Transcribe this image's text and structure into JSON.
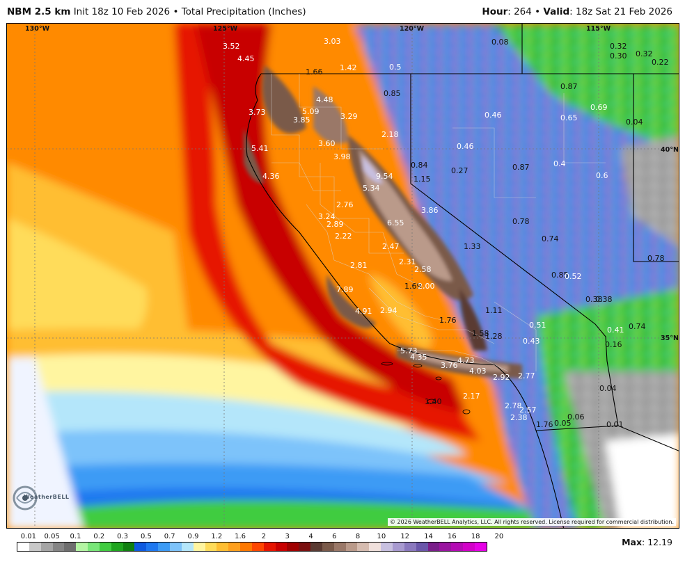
{
  "header": {
    "model": "NBM 2.5 km",
    "init": "Init 18z 10 Feb 2026",
    "bullet": "•",
    "product": "Total Precipitation (Inches)",
    "hour_label": "Hour",
    "hour_value": ": 264",
    "valid_label": "Valid",
    "valid_value": ": 18z Sat 21 Feb 2026"
  },
  "map": {
    "coordinates": [
      {
        "id": "lon130",
        "text": "130°W"
      },
      {
        "id": "lon125",
        "text": "125°W"
      },
      {
        "id": "lon120",
        "text": "120°W"
      },
      {
        "id": "lon115",
        "text": "115°W"
      },
      {
        "id": "lat40",
        "text": "40°N"
      },
      {
        "id": "lat35",
        "text": "35°N"
      }
    ],
    "precip_labels": [
      {
        "text": "3.52",
        "tone": "white"
      },
      {
        "text": "4.45",
        "tone": "white"
      },
      {
        "text": "3.03",
        "tone": "white"
      },
      {
        "text": "1.66",
        "tone": "black"
      },
      {
        "text": "1.42",
        "tone": "white"
      },
      {
        "text": "0.5",
        "tone": "white"
      },
      {
        "text": "0.85",
        "tone": "black"
      },
      {
        "text": "4.48",
        "tone": "white"
      },
      {
        "text": "5.09",
        "tone": "white"
      },
      {
        "text": "3.73",
        "tone": "white"
      },
      {
        "text": "3.85",
        "tone": "white"
      },
      {
        "text": "3.29",
        "tone": "white"
      },
      {
        "text": "2.18",
        "tone": "white"
      },
      {
        "text": "3.60",
        "tone": "white"
      },
      {
        "text": "5.41",
        "tone": "white"
      },
      {
        "text": "3.98",
        "tone": "white"
      },
      {
        "text": "9.54",
        "tone": "white"
      },
      {
        "text": "0.84",
        "tone": "black"
      },
      {
        "text": "1.15",
        "tone": "black"
      },
      {
        "text": "4.36",
        "tone": "white"
      },
      {
        "text": "5.34",
        "tone": "white"
      },
      {
        "text": "2.76",
        "tone": "white"
      },
      {
        "text": "3.86",
        "tone": "white"
      },
      {
        "text": "3.24",
        "tone": "white"
      },
      {
        "text": "2.89",
        "tone": "white"
      },
      {
        "text": "6.55",
        "tone": "white"
      },
      {
        "text": "2.22",
        "tone": "white"
      },
      {
        "text": "1.33",
        "tone": "black"
      },
      {
        "text": "2.47",
        "tone": "white"
      },
      {
        "text": "2.31",
        "tone": "white"
      },
      {
        "text": "2.81",
        "tone": "white"
      },
      {
        "text": "2.58",
        "tone": "white"
      },
      {
        "text": "1.69",
        "tone": "black"
      },
      {
        "text": "2.00",
        "tone": "white"
      },
      {
        "text": "7.89",
        "tone": "white"
      },
      {
        "text": "4.91",
        "tone": "white"
      },
      {
        "text": "2.94",
        "tone": "white"
      },
      {
        "text": "1.11",
        "tone": "black"
      },
      {
        "text": "1.76",
        "tone": "black"
      },
      {
        "text": "1.58",
        "tone": "black"
      },
      {
        "text": "1.28",
        "tone": "black"
      },
      {
        "text": "5.73",
        "tone": "white"
      },
      {
        "text": "4.35",
        "tone": "white"
      },
      {
        "text": "3.76",
        "tone": "white"
      },
      {
        "text": "4.73",
        "tone": "white"
      },
      {
        "text": "4.03",
        "tone": "white"
      },
      {
        "text": "2.92",
        "tone": "white"
      },
      {
        "text": "2.77",
        "tone": "white"
      },
      {
        "text": "2.17",
        "tone": "white"
      },
      {
        "text": "1.40",
        "tone": "black"
      },
      {
        "text": "2.78",
        "tone": "white"
      },
      {
        "text": "2.57",
        "tone": "white"
      },
      {
        "text": "2.38",
        "tone": "white"
      },
      {
        "text": "1.76",
        "tone": "black"
      },
      {
        "text": "0.08",
        "tone": "black"
      },
      {
        "text": "0.32",
        "tone": "black"
      },
      {
        "text": "0.30",
        "tone": "black"
      },
      {
        "text": "0.32",
        "tone": "black"
      },
      {
        "text": "0.22",
        "tone": "black"
      },
      {
        "text": "0.87",
        "tone": "black"
      },
      {
        "text": "0.46",
        "tone": "white"
      },
      {
        "text": "0.65",
        "tone": "white"
      },
      {
        "text": "0.69",
        "tone": "white"
      },
      {
        "text": "0.04",
        "tone": "black"
      },
      {
        "text": "0.46",
        "tone": "white"
      },
      {
        "text": "0.27",
        "tone": "black"
      },
      {
        "text": "0.87",
        "tone": "black"
      },
      {
        "text": "0.4",
        "tone": "white"
      },
      {
        "text": "0.6",
        "tone": "white"
      },
      {
        "text": "0.78",
        "tone": "black"
      },
      {
        "text": "0.74",
        "tone": "black"
      },
      {
        "text": "0.78",
        "tone": "black"
      },
      {
        "text": "0.85",
        "tone": "black"
      },
      {
        "text": "0.52",
        "tone": "white"
      },
      {
        "text": "0.38",
        "tone": "black"
      },
      {
        "text": "0.38",
        "tone": "black"
      },
      {
        "text": "0.51",
        "tone": "white"
      },
      {
        "text": "0.41",
        "tone": "white"
      },
      {
        "text": "0.74",
        "tone": "black"
      },
      {
        "text": "0.43",
        "tone": "white"
      },
      {
        "text": "0.16",
        "tone": "black"
      },
      {
        "text": "0.04",
        "tone": "black"
      },
      {
        "text": "0.06",
        "tone": "black"
      },
      {
        "text": "0.05",
        "tone": "black"
      },
      {
        "text": "0.01",
        "tone": "black"
      }
    ],
    "copyright": "© 2026 WeatherBELL Analytics, LLC. All rights reserved. License required for commercial distribution.",
    "logo_text": "WeatherBELL"
  },
  "legend": {
    "ticks": [
      "0.01",
      "0.05",
      "0.1",
      "0.2",
      "0.3",
      "0.5",
      "0.7",
      "0.9",
      "1.2",
      "1.6",
      "2",
      "3",
      "4",
      "6",
      "8",
      "10",
      "12",
      "14",
      "16",
      "18",
      "20"
    ],
    "colors": [
      "#ffffff",
      "#c8c8c8",
      "#a5a5a5",
      "#858585",
      "#6e6e6e",
      "#b4f5a3",
      "#78e678",
      "#40cc40",
      "#1ea51e",
      "#108010",
      "#0e5ae0",
      "#1e78f0",
      "#3c9bf5",
      "#7dc3fa",
      "#b4e6fa",
      "#fff5a0",
      "#ffdc5a",
      "#ffbe32",
      "#ffa01e",
      "#ff7800",
      "#ff4600",
      "#e61400",
      "#c80000",
      "#a00000",
      "#7a1010",
      "#5a3a32",
      "#7a5a4a",
      "#9a7868",
      "#ba9a8a",
      "#d6bcb0",
      "#f0e0dc",
      "#c8c0e0",
      "#a89ad0",
      "#8a78be",
      "#6a56aa",
      "#7a1e8a",
      "#9a14a0",
      "#b40ab4",
      "#d200c8",
      "#e600e6"
    ],
    "max_label": "Max",
    "max_value": ": 12.19"
  }
}
